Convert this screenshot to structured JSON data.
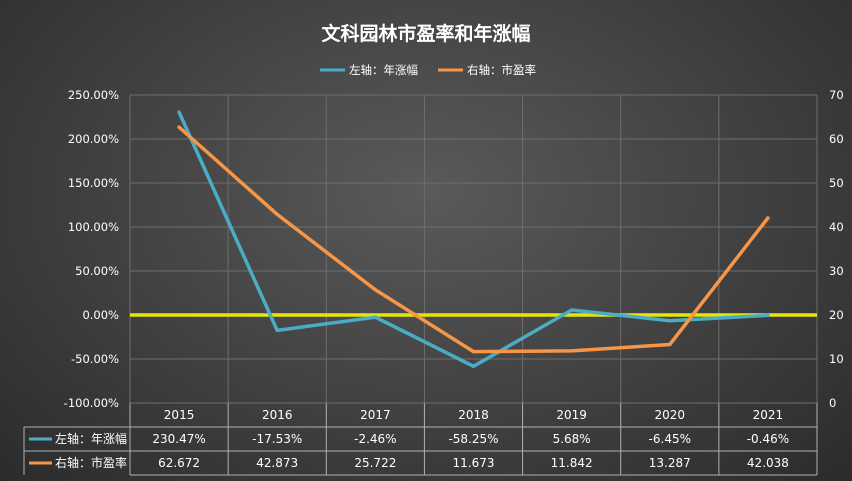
{
  "chart_data": {
    "type": "line",
    "title": "文科园林市盈率和年涨幅",
    "categories": [
      "2015",
      "2016",
      "2017",
      "2018",
      "2019",
      "2020",
      "2021"
    ],
    "series": [
      {
        "name": "左轴：年涨幅",
        "axis": "left",
        "color": "#4bacc6",
        "values": [
          230.47,
          -17.53,
          -2.46,
          -58.25,
          5.68,
          -6.45,
          -0.46
        ],
        "labels": [
          "230.47%",
          "-17.53%",
          "-2.46%",
          "-58.25%",
          "5.68%",
          "-6.45%",
          "-0.46%"
        ]
      },
      {
        "name": "右轴：市盈率",
        "axis": "right",
        "color": "#f79646",
        "values": [
          62.672,
          42.873,
          25.722,
          11.673,
          11.842,
          13.287,
          42.038
        ],
        "labels": [
          "62.672",
          "42.873",
          "25.722",
          "11.673",
          "11.842",
          "13.287",
          "42.038"
        ]
      }
    ],
    "y_left": {
      "range": [
        -100,
        250
      ],
      "ticks": [
        250,
        200,
        150,
        100,
        50,
        0,
        -50,
        -100
      ],
      "tick_labels": [
        "250.00%",
        "200.00%",
        "150.00%",
        "100.00%",
        "50.00%",
        "0.00%",
        "-50.00%",
        "-100.00%"
      ]
    },
    "y_right": {
      "range": [
        0,
        70
      ],
      "ticks": [
        70,
        60,
        50,
        40,
        30,
        20,
        10,
        0
      ],
      "tick_labels": [
        "70",
        "60",
        "50",
        "40",
        "30",
        "20",
        "10",
        "0"
      ]
    },
    "zero_line_color": "#e5e50e",
    "grid": true,
    "legend_position": "top",
    "data_table": true
  }
}
